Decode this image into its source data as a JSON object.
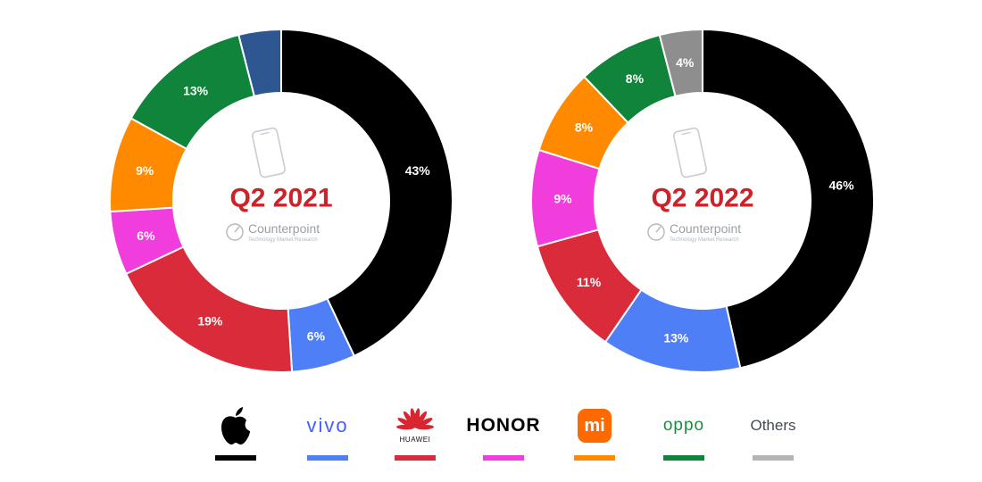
{
  "chart_data": [
    {
      "type": "pie",
      "title": "Q2 2021",
      "slices": [
        {
          "brand": "apple-icon",
          "value": 43,
          "label": "43%",
          "color": "#000000"
        },
        {
          "brand": "vivo",
          "value": 6,
          "label": "6%",
          "color": "#4f7ff7"
        },
        {
          "brand": "HUAWEI",
          "value": 19,
          "label": "19%",
          "color": "#d92b3a"
        },
        {
          "brand": "HONOR",
          "value": 6,
          "label": "6%",
          "color": "#f13ddc"
        },
        {
          "brand": "mi-icon",
          "value": 9,
          "label": "9%",
          "color": "#ff8a00"
        },
        {
          "brand": "oppo",
          "value": 13,
          "label": "13%",
          "color": "#11843b"
        },
        {
          "brand": "Others",
          "value": 4,
          "label": "",
          "color": "#2e5691"
        }
      ]
    },
    {
      "type": "pie",
      "title": "Q2 2022",
      "slices": [
        {
          "brand": "apple-icon",
          "value": 46,
          "label": "46%",
          "color": "#000000"
        },
        {
          "brand": "vivo",
          "value": 13,
          "label": "13%",
          "color": "#4f7ff7"
        },
        {
          "brand": "HUAWEI",
          "value": 11,
          "label": "11%",
          "color": "#d92b3a"
        },
        {
          "brand": "HONOR",
          "value": 9,
          "label": "9%",
          "color": "#f13ddc"
        },
        {
          "brand": "mi-icon",
          "value": 8,
          "label": "8%",
          "color": "#ff8a00"
        },
        {
          "brand": "oppo",
          "value": 8,
          "label": "8%",
          "color": "#11843b"
        },
        {
          "brand": "Others",
          "value": 4,
          "label": "4%",
          "color": "#8e8e8e"
        }
      ]
    }
  ],
  "watermark": {
    "name": "Counterpoint",
    "tagline": "Technology Market Research"
  },
  "legend": [
    {
      "id": "apple",
      "text": "",
      "icon": "apple-icon",
      "color": "#000000"
    },
    {
      "id": "vivo",
      "text": "vivo",
      "color": "#4f7ff7"
    },
    {
      "id": "huawei",
      "text": "HUAWEI",
      "icon": "huawei-flower-icon",
      "color": "#d92b3a"
    },
    {
      "id": "honor",
      "text": "HONOR",
      "color": "#f13ddc"
    },
    {
      "id": "mi",
      "text": "mi",
      "icon": "xiaomi-mi-icon",
      "color": "#ff8a00"
    },
    {
      "id": "oppo",
      "text": "oppo",
      "color": "#11843b"
    },
    {
      "id": "others",
      "text": "Others",
      "color": "#b5b5b5"
    }
  ]
}
